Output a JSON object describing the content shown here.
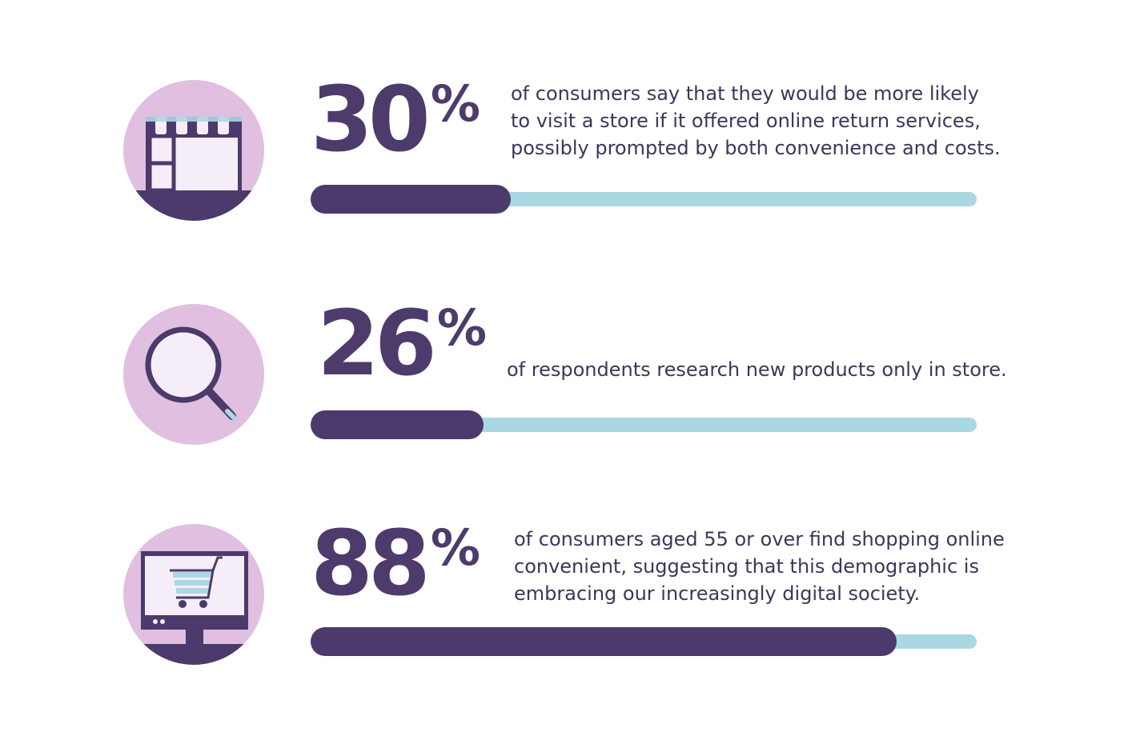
{
  "colors": {
    "fill": "#4b3a6b",
    "track": "#aad8e2",
    "circle": "#e0bfe0",
    "text": "#3f3558"
  },
  "chart_data": {
    "type": "bar",
    "orientation": "horizontal",
    "ylim": [
      0,
      100
    ],
    "items": [
      {
        "value": 30,
        "number_label": "30",
        "unit": "%",
        "icon": "storefront-icon",
        "text": "of consumers say that they would be more likely\nto visit a store if it offered online return services,\npossibly prompted by both convenience and costs."
      },
      {
        "value": 26,
        "number_label": "26",
        "unit": "%",
        "icon": "magnifying-glass-icon",
        "text": "of respondents research new products only in store."
      },
      {
        "value": 88,
        "number_label": "88",
        "unit": "%",
        "icon": "computer-shopping-cart-icon",
        "text": "of consumers aged 55 or over find shopping online\nconvenient, suggesting that this demographic is\nembracing our increasingly digital society."
      }
    ]
  }
}
